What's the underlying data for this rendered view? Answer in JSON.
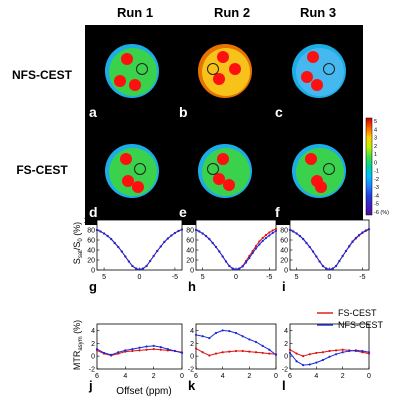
{
  "figure": {
    "column_titles": [
      "Run 1",
      "Run 2",
      "Run 3"
    ],
    "row_titles": [
      "NFS-CEST",
      "FS-CEST"
    ],
    "panel_letters": [
      "a",
      "b",
      "c",
      "d",
      "e",
      "f",
      "g",
      "h",
      "i",
      "j",
      "k",
      "l"
    ],
    "colorbar": {
      "ticks": [
        "5",
        "4",
        "3",
        "2",
        "1",
        "0",
        "-1",
        "-2",
        "-3",
        "-4",
        "-5",
        "-6 (%)"
      ],
      "colors": [
        "#d00000",
        "#ff6000",
        "#ffd000",
        "#c0f000",
        "#40e040",
        "#00d0a0",
        "#00c0ff",
        "#2080ff",
        "#2040e0",
        "#4020c0",
        "#5010a0"
      ]
    },
    "images": [
      {
        "panel": "a",
        "phantom_color": "#39d24a",
        "tint": "#20c0ff"
      },
      {
        "panel": "b",
        "phantom_color": "#f7c21a",
        "tint": "#ff8000"
      },
      {
        "panel": "c",
        "phantom_color": "#45b8f0",
        "tint": "#20c0ff"
      },
      {
        "panel": "d",
        "phantom_color": "#3ad24c",
        "tint": "#20c0ff"
      },
      {
        "panel": "e",
        "phantom_color": "#3ad24c",
        "tint": "#20c0ff"
      },
      {
        "panel": "f",
        "phantom_color": "#3ad24c",
        "tint": "#20c0ff"
      }
    ],
    "zspec_ylabel": "S_sat/S_0 (%)",
    "mtr_ylabel": "MTR_asym (%)",
    "xlabel": "Offset (ppm)",
    "legend": [
      "FS-CEST",
      "NFS-CEST"
    ],
    "series_colors": {
      "FS-CEST": "#e01010",
      "NFS-CEST": "#1a2ad8"
    }
  },
  "chart_data": [
    {
      "type": "line",
      "panel": "g",
      "xlim": [
        6,
        -6
      ],
      "ylim": [
        0,
        100
      ],
      "xticks": [
        "5",
        "0",
        "-5"
      ],
      "yticks": [
        "100",
        "80",
        "60",
        "40",
        "20",
        "0"
      ],
      "series": [
        {
          "name": "FS-CEST",
          "x": [
            6,
            5.5,
            5,
            4.5,
            4,
            3.5,
            3,
            2.5,
            2,
            1.5,
            1,
            0.5,
            0,
            -0.5,
            -1,
            -1.5,
            -2,
            -2.5,
            -3,
            -3.5,
            -4,
            -4.5,
            -5,
            -5.5,
            -6
          ],
          "values": [
            80,
            77,
            73,
            68,
            62,
            54,
            46,
            37,
            27,
            17,
            8,
            3,
            1,
            3,
            8,
            18,
            28,
            38,
            47,
            56,
            63,
            69,
            74,
            78,
            81
          ]
        },
        {
          "name": "NFS-CEST",
          "x": [
            6,
            5.5,
            5,
            4.5,
            4,
            3.5,
            3,
            2.5,
            2,
            1.5,
            1,
            0.5,
            0,
            -0.5,
            -1,
            -1.5,
            -2,
            -2.5,
            -3,
            -3.5,
            -4,
            -4.5,
            -5,
            -5.5,
            -6
          ],
          "values": [
            80,
            77,
            73,
            68,
            62,
            54,
            46,
            37,
            27,
            17,
            8,
            3,
            1,
            3,
            8,
            18,
            28,
            38,
            47,
            56,
            63,
            69,
            74,
            78,
            81
          ]
        }
      ]
    },
    {
      "type": "line",
      "panel": "h",
      "xlim": [
        6,
        -6
      ],
      "ylim": [
        0,
        100
      ],
      "xticks": [
        "5",
        "0",
        "-5"
      ],
      "yticks": [
        "100",
        "80",
        "60",
        "40",
        "20",
        "0"
      ],
      "series": [
        {
          "name": "FS-CEST",
          "x": [
            6,
            5.5,
            5,
            4.5,
            4,
            3.5,
            3,
            2.5,
            2,
            1.5,
            1,
            0.5,
            0,
            -0.5,
            -1,
            -1.5,
            -2,
            -2.5,
            -3,
            -3.5,
            -4,
            -4.5,
            -5,
            -5.5,
            -6
          ],
          "values": [
            80,
            77,
            73,
            68,
            62,
            54,
            46,
            37,
            27,
            17,
            8,
            3,
            1,
            3,
            8,
            18,
            28,
            38,
            48,
            57,
            64,
            70,
            75,
            79,
            82
          ]
        },
        {
          "name": "NFS-CEST",
          "x": [
            6,
            5.5,
            5,
            4.5,
            4,
            3.5,
            3,
            2.5,
            2,
            1.5,
            1,
            0.5,
            0,
            -0.5,
            -1,
            -1.5,
            -2,
            -2.5,
            -3,
            -3.5,
            -4,
            -4.5,
            -5,
            -5.5,
            -6
          ],
          "values": [
            80,
            77,
            73,
            68,
            62,
            54,
            46,
            37,
            27,
            17,
            8,
            3,
            1,
            3,
            7,
            15,
            24,
            34,
            43,
            51,
            58,
            64,
            69,
            74,
            78
          ]
        }
      ]
    },
    {
      "type": "line",
      "panel": "i",
      "xlim": [
        6,
        -6
      ],
      "ylim": [
        0,
        100
      ],
      "xticks": [
        "5",
        "0",
        "-5"
      ],
      "yticks": [
        "100",
        "80",
        "60",
        "40",
        "20",
        "0"
      ],
      "series": [
        {
          "name": "FS-CEST",
          "x": [
            6,
            5.5,
            5,
            4.5,
            4,
            3.5,
            3,
            2.5,
            2,
            1.5,
            1,
            0.5,
            0,
            -0.5,
            -1,
            -1.5,
            -2,
            -2.5,
            -3,
            -3.5,
            -4,
            -4.5,
            -5,
            -5.5,
            -6
          ],
          "values": [
            80,
            77,
            73,
            68,
            62,
            54,
            46,
            37,
            27,
            17,
            8,
            3,
            1,
            3,
            8,
            18,
            28,
            38,
            47,
            56,
            63,
            69,
            74,
            78,
            81
          ]
        },
        {
          "name": "NFS-CEST",
          "x": [
            6,
            5.5,
            5,
            4.5,
            4,
            3.5,
            3,
            2.5,
            2,
            1.5,
            1,
            0.5,
            0,
            -0.5,
            -1,
            -1.5,
            -2,
            -2.5,
            -3,
            -3.5,
            -4,
            -4.5,
            -5,
            -5.5,
            -6
          ],
          "values": [
            80,
            77,
            73,
            68,
            62,
            54,
            46,
            37,
            27,
            17,
            8,
            3,
            1,
            3,
            8,
            18,
            28,
            38,
            48,
            57,
            64,
            70,
            75,
            79,
            82
          ]
        }
      ]
    },
    {
      "type": "line",
      "panel": "j",
      "xlim": [
        6,
        0
      ],
      "ylim": [
        -2,
        5
      ],
      "xticks": [
        "6",
        "4",
        "2",
        "0"
      ],
      "yticks": [
        "4",
        "2",
        "0",
        "-2"
      ],
      "series": [
        {
          "name": "FS-CEST",
          "x": [
            6,
            5.5,
            5,
            4.5,
            4,
            3.5,
            3,
            2.5,
            2,
            1.5,
            1,
            0.5,
            0
          ],
          "values": [
            0.9,
            0.4,
            0.1,
            0.4,
            0.7,
            0.8,
            0.9,
            1.0,
            1.1,
            1.0,
            0.9,
            0.8,
            0.6
          ]
        },
        {
          "name": "NFS-CEST",
          "x": [
            6,
            5.5,
            5,
            4.5,
            4,
            3.5,
            3,
            2.5,
            2,
            1.5,
            1,
            0.5,
            0
          ],
          "values": [
            1.1,
            0.5,
            0.2,
            0.6,
            0.9,
            1.1,
            1.3,
            1.5,
            1.6,
            1.4,
            1.1,
            0.8,
            0.5
          ]
        }
      ]
    },
    {
      "type": "line",
      "panel": "k",
      "xlim": [
        6,
        0
      ],
      "ylim": [
        -2,
        5
      ],
      "xticks": [
        "6",
        "4",
        "2",
        "0"
      ],
      "yticks": [
        "4",
        "2",
        "0",
        "-2"
      ],
      "series": [
        {
          "name": "FS-CEST",
          "x": [
            6,
            5.5,
            5,
            4.5,
            4,
            3.5,
            3,
            2.5,
            2,
            1.5,
            1,
            0.5,
            0
          ],
          "values": [
            1.2,
            0.6,
            0.1,
            0.4,
            0.6,
            0.7,
            0.8,
            0.8,
            0.7,
            0.6,
            0.5,
            0.4,
            0.3
          ]
        },
        {
          "name": "NFS-CEST",
          "x": [
            6,
            5.5,
            5,
            4.5,
            4,
            3.5,
            3,
            2.5,
            2,
            1.5,
            1,
            0.5,
            0
          ],
          "values": [
            3.3,
            3.1,
            2.8,
            3.6,
            4.0,
            3.9,
            3.6,
            3.1,
            2.6,
            2.2,
            1.6,
            1.0,
            0.2
          ]
        }
      ]
    },
    {
      "type": "line",
      "panel": "l",
      "xlim": [
        6,
        0
      ],
      "ylim": [
        -2,
        5
      ],
      "xticks": [
        "6",
        "4",
        "2",
        "0"
      ],
      "yticks": [
        "4",
        "2",
        "0",
        "-2"
      ],
      "series": [
        {
          "name": "FS-CEST",
          "x": [
            6,
            5.5,
            5,
            4.5,
            4,
            3.5,
            3,
            2.5,
            2,
            1.5,
            1,
            0.5,
            0
          ],
          "values": [
            1.0,
            0.4,
            0.0,
            0.3,
            0.5,
            0.6,
            0.8,
            0.9,
            1.0,
            0.9,
            0.8,
            0.6,
            0.4
          ]
        },
        {
          "name": "NFS-CEST",
          "x": [
            6,
            5.5,
            5,
            4.5,
            4,
            3.5,
            3,
            2.5,
            2,
            1.5,
            1,
            0.5,
            0
          ],
          "values": [
            0.5,
            -0.8,
            -1.4,
            -1.3,
            -1.0,
            -0.6,
            -0.1,
            0.3,
            0.6,
            0.8,
            0.9,
            0.8,
            0.6
          ]
        }
      ]
    }
  ]
}
